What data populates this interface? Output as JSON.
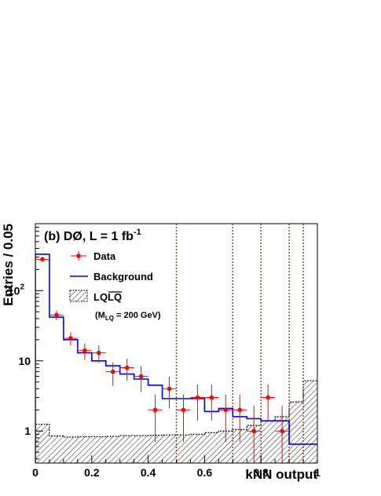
{
  "chart_data": {
    "type": "histogram",
    "title": "(b) DØ, L = 1 fb",
    "title_superscript": "-1",
    "xlabel": "kNN output",
    "ylabel": "Entries / 0.05",
    "xlim": [
      0,
      1
    ],
    "ylim": [
      0.35,
      900
    ],
    "yscale": "log",
    "x_ticks": [
      "0",
      "0.2",
      "0.4",
      "0.6",
      "0.8",
      "1"
    ],
    "x_tick_values": [
      0,
      0.2,
      0.4,
      0.6,
      0.8,
      1
    ],
    "y_ticks": [
      {
        "base": "1",
        "exp": "",
        "value": 1
      },
      {
        "base": "10",
        "exp": "",
        "value": 10
      },
      {
        "base": "10",
        "exp": "2",
        "value": 100
      }
    ],
    "bin_edges": [
      0,
      0.05,
      0.1,
      0.15,
      0.2,
      0.25,
      0.3,
      0.35,
      0.4,
      0.45,
      0.5,
      0.55,
      0.6,
      0.65,
      0.7,
      0.75,
      0.8,
      0.85,
      0.9,
      0.95,
      1.0
    ],
    "series": [
      {
        "name": "Data",
        "style": "points",
        "color": "#ff0000",
        "x": [
          0.025,
          0.075,
          0.125,
          0.175,
          0.225,
          0.275,
          0.325,
          0.375,
          0.425,
          0.475,
          0.525,
          0.575,
          0.625,
          0.675,
          0.725,
          0.775,
          0.825,
          0.875
        ],
        "y": [
          280,
          45,
          21,
          14,
          13,
          7,
          8,
          6,
          2,
          4,
          2,
          3,
          3,
          2,
          2,
          1,
          3,
          1
        ],
        "yerr_low": [
          17,
          7,
          4.5,
          3.7,
          3.6,
          2.6,
          2.8,
          2.4,
          1.3,
          1.9,
          1.3,
          1.6,
          1.6,
          1.3,
          1.3,
          0.8,
          1.6,
          0.8
        ],
        "yerr_high": [
          17,
          7,
          4.5,
          3.7,
          3.6,
          2.6,
          2.8,
          2.4,
          1.3,
          1.9,
          1.3,
          1.6,
          1.6,
          1.3,
          1.3,
          1.3,
          1.6,
          1.3
        ]
      },
      {
        "name": "Background",
        "style": "step",
        "color": "#0000ff",
        "values": [
          330,
          42,
          20,
          13,
          10,
          8.5,
          6.5,
          5.5,
          4.5,
          2.9,
          2.9,
          2.9,
          1.9,
          2.1,
          1.6,
          1.5,
          1.4,
          1.4,
          0.65,
          0.65
        ]
      },
      {
        "name": "LQLQ",
        "style": "hatched",
        "color": "#000000",
        "values": [
          1.25,
          0.85,
          0.82,
          0.83,
          0.83,
          0.84,
          0.86,
          0.86,
          0.87,
          0.88,
          0.88,
          0.9,
          0.95,
          1.0,
          1.05,
          1.2,
          1.4,
          1.6,
          2.6,
          5.2
        ]
      }
    ],
    "vertical_lines": [
      0.5,
      0.7,
      0.8,
      0.9,
      0.95
    ],
    "vertical_line_color": "#8b4a2b",
    "legend": {
      "position": "top-left",
      "entries": [
        {
          "label": "Data"
        },
        {
          "label": "Background"
        },
        {
          "label": "LQLQ",
          "sublabel": "(M",
          "sub": "LQ",
          "sublabel_rest": " = 200 GeV)"
        }
      ]
    }
  }
}
